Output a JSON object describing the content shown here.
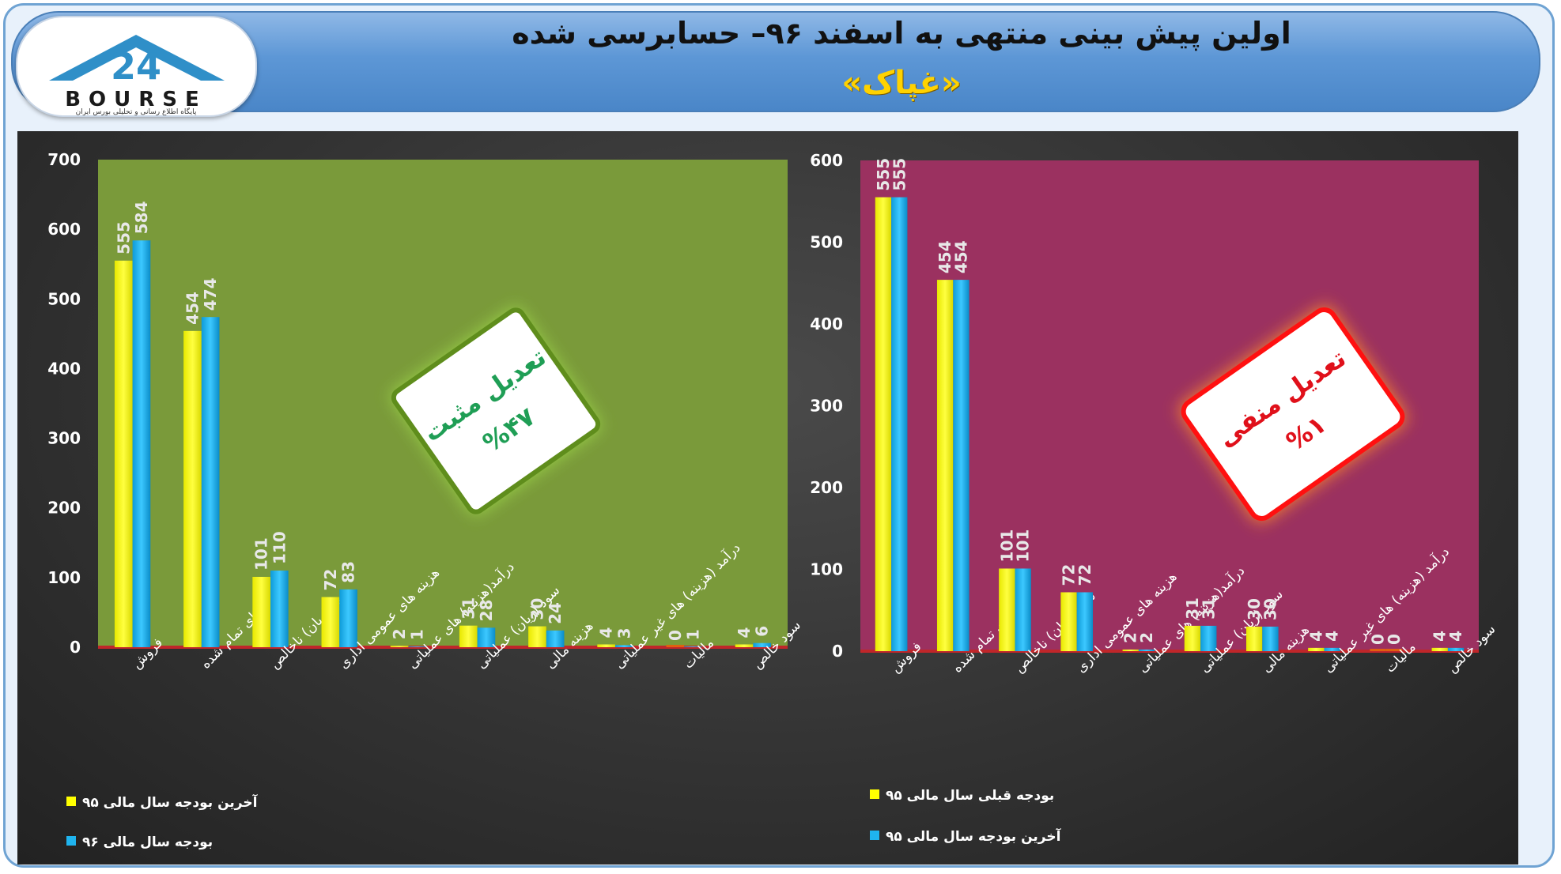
{
  "header": {
    "title": "اولین پیش بینی منتهی به اسفند ۹۶– حسابرسی شده",
    "subtitle": "«غپاک»",
    "logo_text": "BOURSE",
    "logo_number": "24",
    "logo_tagline": "پایگاه اطلاع رسانی و تحلیلی بورس ایران"
  },
  "colors": {
    "left_plot_bg": "#7a9a3a",
    "right_plot_bg": "#9b3160",
    "series_yellow": "#ffff00",
    "series_blue": "#1fb4ef",
    "badge_positive_text": "#1f9e55",
    "badge_negative_text": "#e0101a"
  },
  "chart_data": [
    {
      "type": "bar",
      "position": "left",
      "categories": [
        "فروش",
        "بهای تمام شده",
        "سود (زیان) ناخالص",
        "هزینه های عمومی اداری",
        "درآمد(هزینه) های عملیاتی",
        "سود (زیان) عملیاتی",
        "هزینه مالی",
        "درآمد (هزینه) های غیر عملیاتی",
        "مالیات",
        "سود خالص"
      ],
      "series": [
        {
          "name": "آخرین بودجه سال مالی ۹۵",
          "values": [
            555,
            454,
            101,
            72,
            2,
            31,
            30,
            4,
            0,
            4
          ]
        },
        {
          "name": "بودجه سال مالی ۹۶",
          "values": [
            584,
            474,
            110,
            83,
            1,
            28,
            24,
            3,
            1,
            6
          ]
        }
      ],
      "ylim": [
        0,
        700
      ],
      "yticks": [
        0,
        100,
        200,
        300,
        400,
        500,
        600,
        700
      ],
      "grid": false,
      "legend_placement": "bottom-left",
      "badge": {
        "line1": "تعدیل مثبت",
        "line2": "%۴۷"
      }
    },
    {
      "type": "bar",
      "position": "right",
      "categories": [
        "فروش",
        "بهای تمام شده",
        "سود (زیان) ناخالص",
        "هزینه های عمومی اداری",
        "درآمد(هزینه) های عملیاتی",
        "سود (زیان) عملیاتی",
        "هزینه مالی",
        "درآمد (هزینه) های غیر عملیاتی",
        "مالیات",
        "سود خالص"
      ],
      "series": [
        {
          "name": "بودجه قبلی سال مالی ۹۵",
          "values": [
            555,
            454,
            101,
            72,
            2,
            31,
            30,
            4,
            0,
            4
          ]
        },
        {
          "name": "آخرین بودجه سال مالی ۹۵",
          "values": [
            555,
            454,
            101,
            72,
            2,
            31,
            30,
            4,
            0,
            4
          ]
        }
      ],
      "ylim": [
        0,
        600
      ],
      "yticks": [
        0,
        100,
        200,
        300,
        400,
        500,
        600
      ],
      "grid": false,
      "legend_placement": "bottom-left",
      "badge": {
        "line1": "تعدیل منفی",
        "line2": "%۱"
      }
    }
  ]
}
